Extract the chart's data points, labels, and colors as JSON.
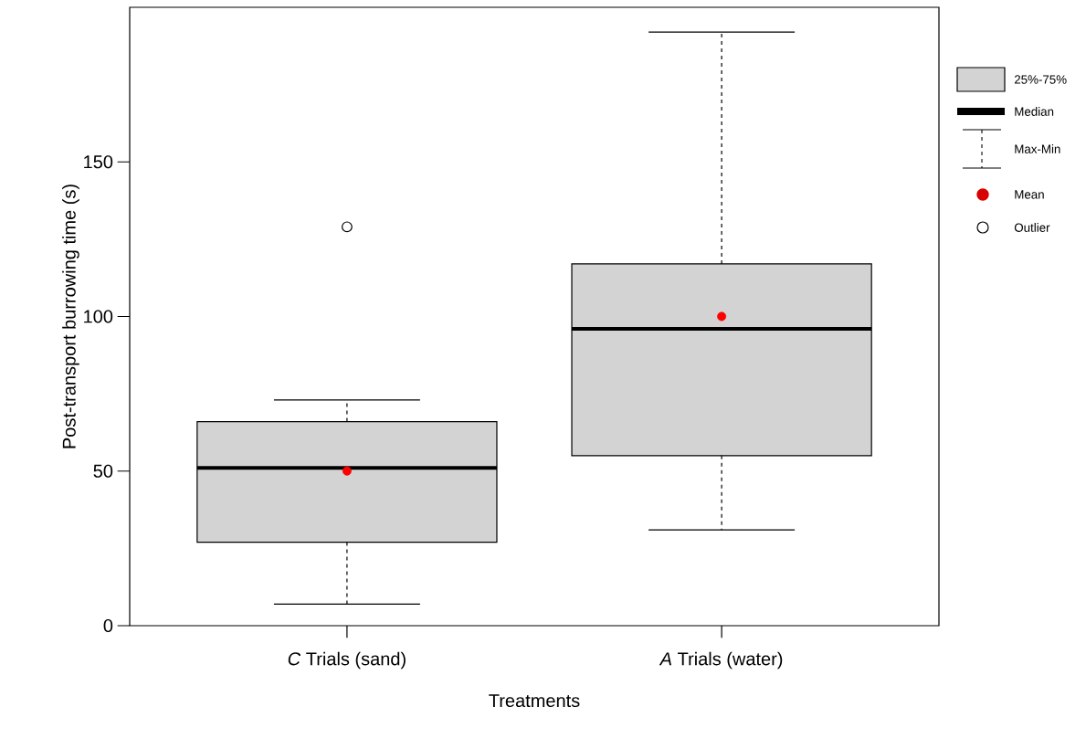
{
  "chart_data": {
    "type": "box",
    "categories": [
      "*C* Trials (sand)",
      "*A* Trials (water)"
    ],
    "xlabel": "Treatments",
    "ylabel": "Post-transport burrowing time (s)",
    "ylim": [
      0,
      200
    ],
    "yticks": [
      0,
      50,
      100,
      150
    ],
    "series": [
      {
        "color": "#d3d3d3",
        "boxes": [
          {
            "low": 7,
            "q1": 27,
            "median": 51,
            "q3": 66,
            "high": 73,
            "mean": 50,
            "outliers": [
              129
            ]
          },
          {
            "low": 31,
            "q1": 55,
            "median": 96,
            "q3": 117,
            "high": 192,
            "mean": 100
          }
        ]
      }
    ],
    "annotations": [
      "25%-75%",
      "Median",
      "Max-Min",
      "Mean",
      "Outlier"
    ],
    "grid": false
  }
}
